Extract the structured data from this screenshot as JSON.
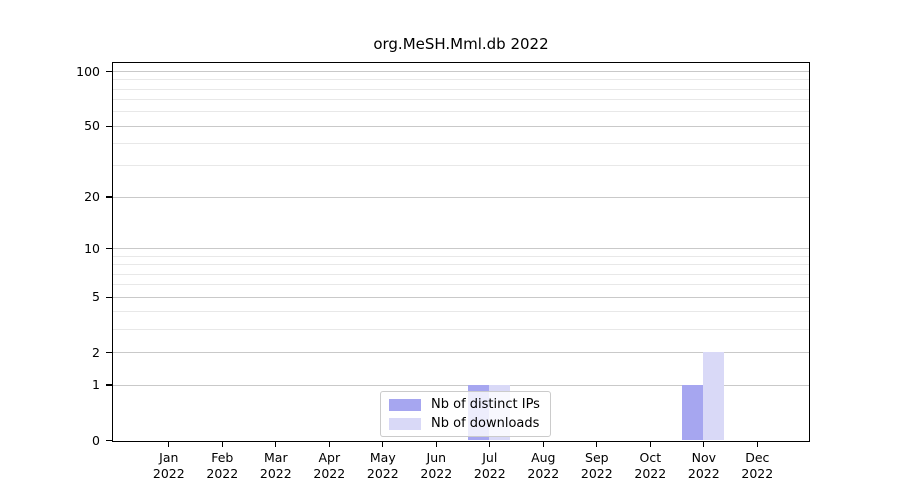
{
  "chart_data": {
    "type": "bar",
    "title": "org.MeSH.Mml.db 2022",
    "categories": [
      "Jan",
      "Feb",
      "Mar",
      "Apr",
      "May",
      "Jun",
      "Jul",
      "Aug",
      "Sep",
      "Oct",
      "Nov",
      "Dec"
    ],
    "x_year_line": "2022",
    "series": [
      {
        "name": "Nb of distinct IPs",
        "color": "#a6a6f0",
        "values": [
          0,
          0,
          0,
          0,
          0,
          0,
          1,
          0,
          0,
          0,
          1,
          0
        ]
      },
      {
        "name": "Nb of downloads",
        "color": "#d9d9f7",
        "values": [
          0,
          0,
          0,
          0,
          0,
          0,
          1,
          0,
          0,
          0,
          2,
          0
        ]
      }
    ],
    "y_scale": "log1p",
    "y_major_ticks": [
      0,
      1,
      2,
      5,
      10,
      20,
      50,
      100
    ],
    "y_minor_ticks": [
      3,
      4,
      6,
      7,
      8,
      9,
      30,
      40,
      60,
      70,
      80,
      90
    ],
    "ylim": [
      0,
      113
    ],
    "grid": "horizontal",
    "legend_position": "lower-center-inside"
  },
  "colors": {
    "grid_major": "#c9c9c9",
    "grid_minor": "#e8e8e8",
    "axis": "#000000",
    "background": "#ffffff"
  }
}
